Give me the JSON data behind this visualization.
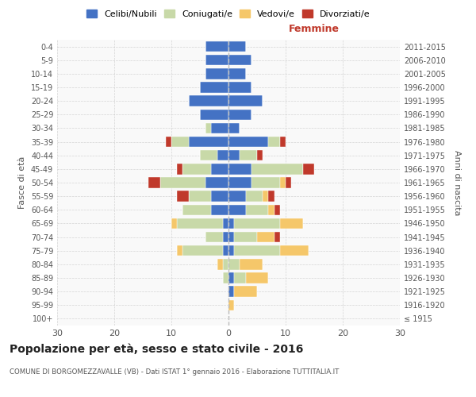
{
  "age_groups": [
    "100+",
    "95-99",
    "90-94",
    "85-89",
    "80-84",
    "75-79",
    "70-74",
    "65-69",
    "60-64",
    "55-59",
    "50-54",
    "45-49",
    "40-44",
    "35-39",
    "30-34",
    "25-29",
    "20-24",
    "15-19",
    "10-14",
    "5-9",
    "0-4"
  ],
  "birth_years": [
    "≤ 1915",
    "1916-1920",
    "1921-1925",
    "1926-1930",
    "1931-1935",
    "1936-1940",
    "1941-1945",
    "1946-1950",
    "1951-1955",
    "1956-1960",
    "1961-1965",
    "1966-1970",
    "1971-1975",
    "1976-1980",
    "1981-1985",
    "1986-1990",
    "1991-1995",
    "1996-2000",
    "2001-2005",
    "2006-2010",
    "2011-2015"
  ],
  "colors": {
    "celibi": "#4472c4",
    "coniugati": "#c8d9a8",
    "vedovi": "#f5c76a",
    "divorziati": "#c0392b"
  },
  "males": {
    "celibi": [
      0,
      0,
      0,
      0,
      0,
      1,
      1,
      1,
      3,
      3,
      4,
      3,
      2,
      7,
      3,
      5,
      7,
      5,
      4,
      4,
      4
    ],
    "coniugati": [
      0,
      0,
      0,
      1,
      1,
      7,
      3,
      8,
      5,
      4,
      8,
      5,
      3,
      3,
      1,
      0,
      0,
      0,
      0,
      0,
      0
    ],
    "vedovi": [
      0,
      0,
      0,
      0,
      1,
      1,
      0,
      1,
      0,
      0,
      0,
      0,
      0,
      0,
      0,
      0,
      0,
      0,
      0,
      0,
      0
    ],
    "divorziati": [
      0,
      0,
      0,
      0,
      0,
      0,
      0,
      0,
      0,
      2,
      2,
      1,
      0,
      1,
      0,
      0,
      0,
      0,
      0,
      0,
      0
    ]
  },
  "females": {
    "celibi": [
      0,
      0,
      1,
      1,
      0,
      1,
      1,
      1,
      3,
      3,
      4,
      4,
      2,
      7,
      2,
      4,
      6,
      4,
      3,
      4,
      3
    ],
    "coniugati": [
      0,
      0,
      0,
      2,
      2,
      8,
      4,
      8,
      4,
      3,
      5,
      9,
      3,
      2,
      0,
      0,
      0,
      0,
      0,
      0,
      0
    ],
    "vedovi": [
      0,
      1,
      4,
      4,
      4,
      5,
      3,
      4,
      1,
      1,
      1,
      0,
      0,
      0,
      0,
      0,
      0,
      0,
      0,
      0,
      0
    ],
    "divorziati": [
      0,
      0,
      0,
      0,
      0,
      0,
      1,
      0,
      1,
      1,
      1,
      2,
      1,
      1,
      0,
      0,
      0,
      0,
      0,
      0,
      0
    ]
  },
  "xlim": 30,
  "title": "Popolazione per età, sesso e stato civile - 2016",
  "subtitle": "COMUNE DI BORGOMEZZAVALLE (VB) - Dati ISTAT 1° gennaio 2016 - Elaborazione TUTTITALIA.IT",
  "xlabel_right": "Femmine",
  "ylabel_left": "Fasce di età",
  "ylabel_right": "Anni di nascita",
  "bg_color": "#ffffff",
  "grid_color": "#cccccc",
  "legend_labels": [
    "Celibi/Nubili",
    "Coniugati/e",
    "Vedovi/e",
    "Divorziati/e"
  ]
}
